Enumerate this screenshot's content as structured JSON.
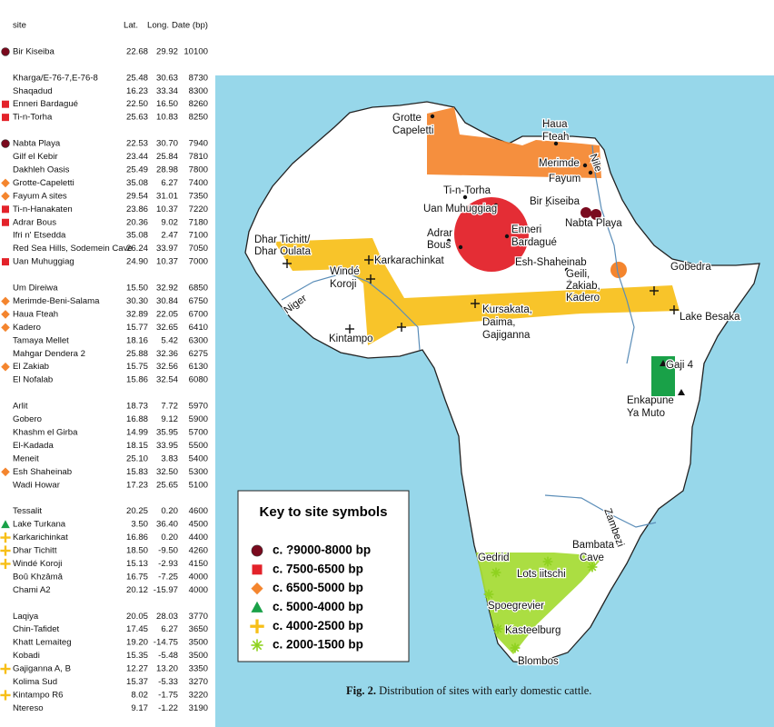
{
  "table": {
    "header": {
      "site": "site",
      "lat": "Lat.",
      "long": "Long.",
      "date": "Date (bp)"
    },
    "groups": [
      [
        {
          "symbol": "circle",
          "site": "Bir Kiseiba",
          "lat": "22.68",
          "long": "29.92",
          "date": "10100"
        }
      ],
      [
        {
          "site": "Kharga/E-76-7,E-76-8",
          "lat": "25.48",
          "long": "30.63",
          "date": "8730"
        },
        {
          "site": "Shaqadud",
          "lat": "16.23",
          "long": "33.34",
          "date": "8300"
        },
        {
          "symbol": "square",
          "site": "Enneri Bardagué",
          "lat": "22.50",
          "long": "16.50",
          "date": "8260"
        },
        {
          "symbol": "square",
          "site": "Ti-n-Torha",
          "lat": "25.63",
          "long": "10.83",
          "date": "8250"
        }
      ],
      [
        {
          "symbol": "circle",
          "site": "Nabta Playa",
          "lat": "22.53",
          "long": "30.70",
          "date": "7940"
        },
        {
          "site": "Gilf el Kebir",
          "lat": "23.44",
          "long": "25.84",
          "date": "7810"
        },
        {
          "site": "Dakhleh Oasis",
          "lat": "25.49",
          "long": "28.98",
          "date": "7800"
        },
        {
          "symbol": "diamond",
          "site": "Grotte-Capeletti",
          "lat": "35.08",
          "long": "6.27",
          "date": "7400"
        },
        {
          "symbol": "diamond",
          "site": "Fayum A sites",
          "lat": "29.54",
          "long": "31.01",
          "date": "7350"
        },
        {
          "symbol": "square",
          "site": "Ti-n-Hanakaten",
          "lat": "23.86",
          "long": "10.37",
          "date": "7220"
        },
        {
          "symbol": "square",
          "site": "Adrar Bous",
          "lat": "20.36",
          "long": "9.02",
          "date": "7180"
        },
        {
          "site": "Ifri n' Etsedda",
          "lat": "35.08",
          "long": "2.47",
          "date": "7100"
        },
        {
          "site": "Red Sea Hills, Sodemein Cave",
          "lat": "26.24",
          "long": "33.97",
          "date": "7050"
        },
        {
          "symbol": "square",
          "site": "Uan Muhuggiag",
          "lat": "24.90",
          "long": "10.37",
          "date": "7000"
        }
      ],
      [
        {
          "site": "Um Direiwa",
          "lat": "15.50",
          "long": "32.92",
          "date": "6850"
        },
        {
          "symbol": "diamond",
          "site": "Merimde-Beni-Salama",
          "lat": "30.30",
          "long": "30.84",
          "date": "6750"
        },
        {
          "symbol": "diamond",
          "site": "Haua Fteah",
          "lat": "32.89",
          "long": "22.05",
          "date": "6700"
        },
        {
          "symbol": "diamond",
          "site": "Kadero",
          "lat": "15.77",
          "long": "32.65",
          "date": "6410"
        },
        {
          "site": "Tamaya Mellet",
          "lat": "18.16",
          "long": "5.42",
          "date": "6300"
        },
        {
          "site": "Mahgar Dendera 2",
          "lat": "25.88",
          "long": "32.36",
          "date": "6275"
        },
        {
          "symbol": "diamond",
          "site": "El Zakiab",
          "lat": "15.75",
          "long": "32.56",
          "date": "6130"
        },
        {
          "site": "El Nofalab",
          "lat": "15.86",
          "long": "32.54",
          "date": "6080"
        }
      ],
      [
        {
          "site": "Arlit",
          "lat": "18.73",
          "long": "7.72",
          "date": "5970"
        },
        {
          "site": "Gobero",
          "lat": "16.88",
          "long": "9.12",
          "date": "5900"
        },
        {
          "site": "Khashm el Girba",
          "lat": "14.99",
          "long": "35.95",
          "date": "5700"
        },
        {
          "site": "El-Kadada",
          "lat": "18.15",
          "long": "33.95",
          "date": "5500"
        },
        {
          "site": "Meneit",
          "lat": "25.10",
          "long": "3.83",
          "date": "5400"
        },
        {
          "symbol": "diamond",
          "site": "Esh Shaheinab",
          "lat": "15.83",
          "long": "32.50",
          "date": "5300"
        },
        {
          "site": "Wadi Howar",
          "lat": "17.23",
          "long": "25.65",
          "date": "5100"
        }
      ],
      [
        {
          "site": "Tessalit",
          "lat": "20.25",
          "long": "0.20",
          "date": "4600"
        },
        {
          "symbol": "triangle",
          "site": "Lake Turkana",
          "lat": "3.50",
          "long": "36.40",
          "date": "4500"
        },
        {
          "symbol": "cross",
          "site": "Karkarichinkat",
          "lat": "16.86",
          "long": "0.20",
          "date": "4400"
        },
        {
          "symbol": "cross",
          "site": "Dhar Tichitt",
          "lat": "18.50",
          "long": "-9.50",
          "date": "4260"
        },
        {
          "symbol": "cross",
          "site": "Windé Koroji",
          "lat": "15.13",
          "long": "-2.93",
          "date": "4150"
        },
        {
          "site": "Boû Khzâmâ",
          "lat": "16.75",
          "long": "-7.25",
          "date": "4000"
        },
        {
          "site": "Chami A2",
          "lat": "20.12",
          "long": "-15.97",
          "date": "4000"
        }
      ],
      [
        {
          "site": "Laqiya",
          "lat": "20.05",
          "long": "28.03",
          "date": "3770"
        },
        {
          "site": "Chin-Tafidet",
          "lat": "17.45",
          "long": "6.27",
          "date": "3650"
        },
        {
          "site": "Khatt Lemaiteg",
          "lat": "19.20",
          "long": "-14.75",
          "date": "3500"
        },
        {
          "site": "Kobadi",
          "lat": "15.35",
          "long": "-5.48",
          "date": "3500"
        },
        {
          "symbol": "cross",
          "site": "Gajiganna A, B",
          "lat": "12.27",
          "long": "13.20",
          "date": "3350"
        },
        {
          "site": "Kolima Sud",
          "lat": "15.37",
          "long": "-5.33",
          "date": "3270"
        },
        {
          "symbol": "cross",
          "site": "Kintampo R6",
          "lat": "8.02",
          "long": "-1.75",
          "date": "3220"
        },
        {
          "site": "Ntereso",
          "lat": "9.17",
          "long": "-1.22",
          "date": "3190"
        }
      ]
    ]
  },
  "map": {
    "labels": [
      "Grotte",
      "Capeletti",
      "Haua",
      "Fteah",
      "Merimde",
      "Fayum",
      "Nile",
      "Ti-n-Torha",
      "Uan Muhuggiag",
      "Bir Kiseiba",
      "Nabta Playa",
      "Adrar",
      "Bous",
      "Enneri",
      "Bardagué",
      "Dhar Tichitt/",
      "Dhar Oulata",
      "Karkarachinkat",
      "Esh-Shaheinab",
      "Geili,",
      "Zakiab,",
      "Kadero",
      "Gobedra",
      "Windé",
      "Koroji",
      "Niger",
      "Kursakata,",
      "Daima,",
      "Gajiganna",
      "Lake Besaka",
      "Kintampo",
      "Gaji 4",
      "Enkapune",
      "Ya Muto",
      "Zambezi",
      "Bambata",
      "Cave",
      "Gedrid",
      "Lots iitschi",
      "Spoegrevier",
      "Kasteelburg",
      "Blombos"
    ],
    "key": {
      "title": "Key to site symbols",
      "entries": [
        {
          "symbol": "circle",
          "label": "c. ?9000-8000 bp"
        },
        {
          "symbol": "square",
          "label": "c. 7500-6500 bp"
        },
        {
          "symbol": "diamond",
          "label": "c. 6500-5000 bp"
        },
        {
          "symbol": "triangle",
          "label": "c. 5000-4000 bp"
        },
        {
          "symbol": "cross",
          "label": "c. 4000-2500 bp"
        },
        {
          "symbol": "star",
          "label": "c. 2000-1500 bp"
        }
      ]
    },
    "caption": {
      "label": "Fig. 2.",
      "text": "Distribution of sites with early domestic cattle."
    }
  }
}
